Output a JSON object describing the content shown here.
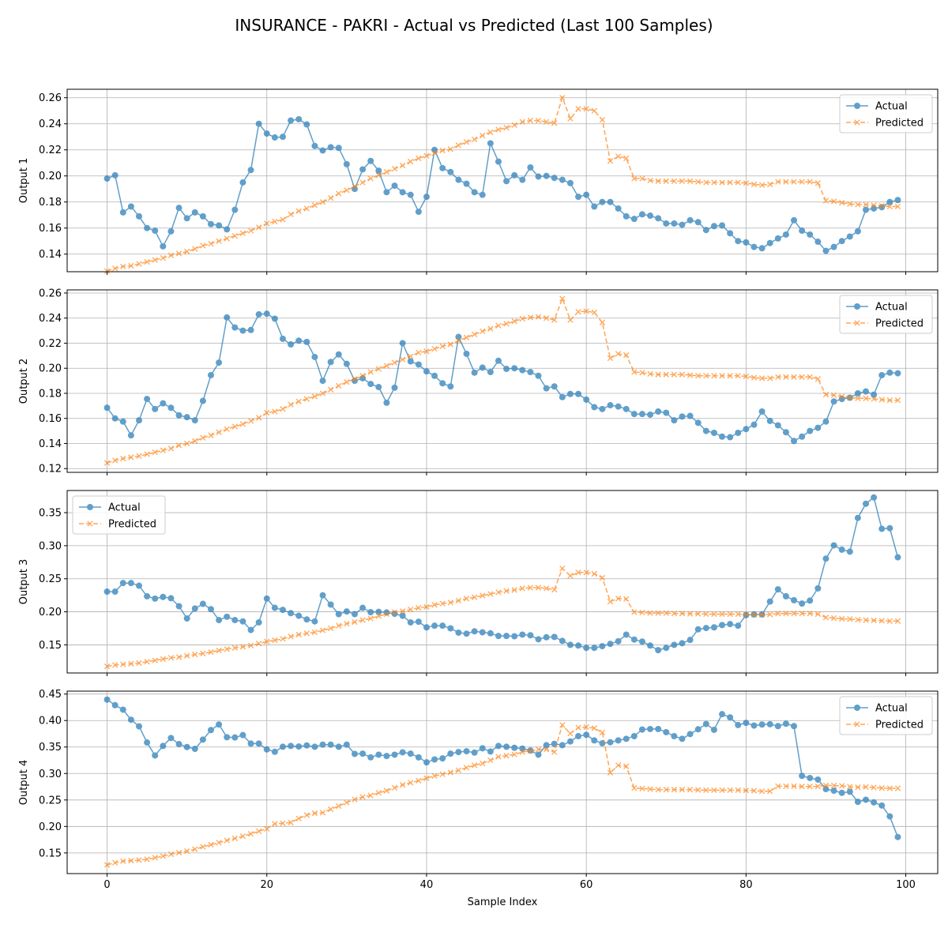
{
  "figure": {
    "title": "INSURANCE - PAKRI - Actual vs Predicted (Last 100 Samples)",
    "xlabel": "Sample Index"
  },
  "colors": {
    "actual": "#1f77b4",
    "predicted": "#ff7f0e",
    "grid": "#b0b0b0"
  },
  "chart_data": [
    {
      "type": "line",
      "ylabel": "Output 1",
      "xlim": [
        -5,
        104
      ],
      "ylim": [
        0.1265,
        0.2665
      ],
      "xticks": [
        0,
        20,
        40,
        60,
        80,
        100
      ],
      "yticks": [
        0.14,
        0.16,
        0.18,
        0.2,
        0.22,
        0.24,
        0.26
      ],
      "ytick_labels": [
        "0.14",
        "0.16",
        "0.18",
        "0.20",
        "0.22",
        "0.24",
        "0.26"
      ],
      "grid": true,
      "legend": "upper right",
      "series": [
        {
          "name": "Actual",
          "marker": "o",
          "values": [
            0.198,
            0.2005,
            0.172,
            0.1765,
            0.169,
            0.16,
            0.158,
            0.146,
            0.1575,
            0.1755,
            0.1675,
            0.172,
            0.169,
            0.163,
            0.162,
            0.159,
            0.174,
            0.195,
            0.2045,
            0.24,
            0.2325,
            0.2295,
            0.23,
            0.2425,
            0.2435,
            0.2395,
            0.223,
            0.2195,
            0.222,
            0.2215,
            0.209,
            0.19,
            0.205,
            0.2115,
            0.204,
            0.1875,
            0.1925,
            0.1875,
            0.1855,
            0.1725,
            0.184,
            0.22,
            0.206,
            0.203,
            0.197,
            0.194,
            0.1875,
            0.1855,
            0.225,
            0.211,
            0.196,
            0.2005,
            0.197,
            0.2065,
            0.1995,
            0.2,
            0.1985,
            0.197,
            0.1945,
            0.184,
            0.1855,
            0.1765,
            0.18,
            0.18,
            0.175,
            0.169,
            0.167,
            0.1705,
            0.1695,
            0.1675,
            0.1635,
            0.1635,
            0.1625,
            0.166,
            0.1645,
            0.1585,
            0.1615,
            0.162,
            0.156,
            0.15,
            0.149,
            0.1455,
            0.1445,
            0.1485,
            0.152,
            0.155,
            0.166,
            0.158,
            0.155,
            0.1495,
            0.1425,
            0.1455,
            0.15,
            0.1535,
            0.1575,
            0.174,
            0.175,
            0.176,
            0.18,
            0.1815
          ]
        },
        {
          "name": "Predicted",
          "marker": "x",
          "values": [
            0.127,
            0.129,
            0.1305,
            0.131,
            0.1325,
            0.134,
            0.1355,
            0.137,
            0.139,
            0.1405,
            0.142,
            0.144,
            0.1465,
            0.148,
            0.15,
            0.152,
            0.154,
            0.156,
            0.158,
            0.1605,
            0.1635,
            0.165,
            0.1665,
            0.1705,
            0.173,
            0.175,
            0.1775,
            0.18,
            0.183,
            0.1865,
            0.189,
            0.192,
            0.195,
            0.198,
            0.2005,
            0.203,
            0.2055,
            0.208,
            0.211,
            0.2135,
            0.2155,
            0.2175,
            0.2195,
            0.2205,
            0.2235,
            0.226,
            0.228,
            0.231,
            0.2335,
            0.2355,
            0.237,
            0.239,
            0.2415,
            0.2425,
            0.2425,
            0.2415,
            0.2405,
            0.26,
            0.244,
            0.2515,
            0.2515,
            0.25,
            0.243,
            0.2115,
            0.215,
            0.2135,
            0.198,
            0.198,
            0.1965,
            0.196,
            0.196,
            0.196,
            0.196,
            0.196,
            0.1955,
            0.195,
            0.195,
            0.195,
            0.195,
            0.195,
            0.1945,
            0.1935,
            0.193,
            0.1935,
            0.1955,
            0.1955,
            0.1955,
            0.1955,
            0.1955,
            0.1945,
            0.181,
            0.1805,
            0.1795,
            0.1785,
            0.178,
            0.178,
            0.1775,
            0.177,
            0.1765,
            0.1765
          ]
        }
      ]
    },
    {
      "type": "line",
      "ylabel": "Output 2",
      "xlim": [
        -5,
        104
      ],
      "ylim": [
        0.117,
        0.2625
      ],
      "xticks": [
        0,
        20,
        40,
        60,
        80,
        100
      ],
      "yticks": [
        0.12,
        0.14,
        0.16,
        0.18,
        0.2,
        0.22,
        0.24,
        0.26
      ],
      "ytick_labels": [
        "0.12",
        "0.14",
        "0.16",
        "0.18",
        "0.20",
        "0.22",
        "0.24",
        "0.26"
      ],
      "grid": true,
      "legend": "upper right",
      "series": [
        {
          "name": "Actual",
          "marker": "o",
          "values": [
            0.1685,
            0.16,
            0.1575,
            0.1465,
            0.1585,
            0.1755,
            0.1675,
            0.172,
            0.1685,
            0.1625,
            0.161,
            0.1585,
            0.174,
            0.1945,
            0.2045,
            0.2405,
            0.2325,
            0.23,
            0.2305,
            0.243,
            0.2435,
            0.2395,
            0.2235,
            0.219,
            0.222,
            0.221,
            0.209,
            0.19,
            0.205,
            0.211,
            0.2035,
            0.19,
            0.192,
            0.1875,
            0.185,
            0.1725,
            0.1845,
            0.22,
            0.2055,
            0.203,
            0.1975,
            0.194,
            0.188,
            0.1855,
            0.225,
            0.2115,
            0.1965,
            0.2005,
            0.197,
            0.206,
            0.1995,
            0.2,
            0.1985,
            0.197,
            0.194,
            0.184,
            0.1855,
            0.177,
            0.1795,
            0.1795,
            0.175,
            0.169,
            0.1675,
            0.1705,
            0.1695,
            0.1675,
            0.1635,
            0.1635,
            0.163,
            0.1655,
            0.1645,
            0.1585,
            0.1615,
            0.162,
            0.1565,
            0.15,
            0.1485,
            0.1455,
            0.145,
            0.1485,
            0.1515,
            0.155,
            0.1655,
            0.158,
            0.1545,
            0.149,
            0.142,
            0.1455,
            0.15,
            0.1525,
            0.1575,
            0.1735,
            0.1755,
            0.1765,
            0.18,
            0.1815,
            0.179,
            0.1945,
            0.1965,
            0.196
          ]
        },
        {
          "name": "Predicted",
          "marker": "x",
          "values": [
            0.1245,
            0.1265,
            0.128,
            0.129,
            0.13,
            0.1315,
            0.133,
            0.1345,
            0.136,
            0.1385,
            0.14,
            0.142,
            0.1445,
            0.1465,
            0.149,
            0.1515,
            0.1535,
            0.1555,
            0.158,
            0.1605,
            0.1645,
            0.1655,
            0.1675,
            0.171,
            0.1735,
            0.1755,
            0.1775,
            0.18,
            0.183,
            0.186,
            0.189,
            0.1915,
            0.194,
            0.197,
            0.1995,
            0.202,
            0.2045,
            0.207,
            0.2095,
            0.2125,
            0.2135,
            0.2155,
            0.2175,
            0.219,
            0.222,
            0.2245,
            0.227,
            0.2295,
            0.2315,
            0.234,
            0.2355,
            0.2375,
            0.2395,
            0.2405,
            0.241,
            0.24,
            0.2385,
            0.2555,
            0.2385,
            0.245,
            0.2455,
            0.2445,
            0.2365,
            0.208,
            0.2115,
            0.2105,
            0.197,
            0.1965,
            0.1955,
            0.195,
            0.195,
            0.195,
            0.195,
            0.1945,
            0.194,
            0.194,
            0.194,
            0.194,
            0.194,
            0.194,
            0.1935,
            0.1925,
            0.192,
            0.192,
            0.193,
            0.193,
            0.193,
            0.193,
            0.193,
            0.1915,
            0.179,
            0.1785,
            0.1775,
            0.1765,
            0.176,
            0.176,
            0.1755,
            0.175,
            0.1745,
            0.1745
          ]
        }
      ]
    },
    {
      "type": "line",
      "ylabel": "Output 3",
      "xlim": [
        -5,
        104
      ],
      "ylim": [
        0.1075,
        0.3835
      ],
      "xticks": [
        0,
        20,
        40,
        60,
        80,
        100
      ],
      "yticks": [
        0.15,
        0.2,
        0.25,
        0.3,
        0.35
      ],
      "ytick_labels": [
        "0.15",
        "0.20",
        "0.25",
        "0.30",
        "0.35"
      ],
      "grid": true,
      "legend": "upper left",
      "series": [
        {
          "name": "Actual",
          "marker": "o",
          "values": [
            0.2305,
            0.2305,
            0.2435,
            0.2435,
            0.2395,
            0.2235,
            0.22,
            0.2225,
            0.2205,
            0.2085,
            0.19,
            0.205,
            0.212,
            0.204,
            0.1875,
            0.1925,
            0.1875,
            0.1855,
            0.1725,
            0.184,
            0.22,
            0.206,
            0.203,
            0.198,
            0.194,
            0.1885,
            0.1855,
            0.225,
            0.211,
            0.1965,
            0.2005,
            0.1965,
            0.206,
            0.1995,
            0.2,
            0.199,
            0.197,
            0.194,
            0.184,
            0.185,
            0.1765,
            0.179,
            0.179,
            0.175,
            0.1685,
            0.167,
            0.1705,
            0.169,
            0.1675,
            0.1635,
            0.1635,
            0.163,
            0.1655,
            0.1645,
            0.1585,
            0.1615,
            0.162,
            0.156,
            0.15,
            0.149,
            0.1455,
            0.1455,
            0.148,
            0.1515,
            0.1555,
            0.1655,
            0.158,
            0.155,
            0.149,
            0.142,
            0.1455,
            0.15,
            0.1525,
            0.1575,
            0.1735,
            0.1755,
            0.1765,
            0.18,
            0.1815,
            0.179,
            0.195,
            0.196,
            0.196,
            0.2155,
            0.234,
            0.2235,
            0.2175,
            0.2125,
            0.217,
            0.2355,
            0.2805,
            0.3005,
            0.294,
            0.291,
            0.342,
            0.3635,
            0.373,
            0.3255,
            0.3265,
            0.2825
          ]
        },
        {
          "name": "Predicted",
          "marker": "x",
          "values": [
            0.1175,
            0.1195,
            0.1205,
            0.1215,
            0.1225,
            0.1245,
            0.1265,
            0.1285,
            0.1305,
            0.1315,
            0.1335,
            0.1355,
            0.137,
            0.139,
            0.1415,
            0.1435,
            0.1455,
            0.147,
            0.149,
            0.152,
            0.155,
            0.157,
            0.159,
            0.1625,
            0.1655,
            0.1675,
            0.169,
            0.172,
            0.175,
            0.179,
            0.182,
            0.1845,
            0.1875,
            0.19,
            0.1935,
            0.1965,
            0.1995,
            0.201,
            0.2035,
            0.206,
            0.2075,
            0.2105,
            0.2125,
            0.214,
            0.217,
            0.22,
            0.222,
            0.2245,
            0.227,
            0.2295,
            0.2315,
            0.233,
            0.2355,
            0.2365,
            0.2365,
            0.2355,
            0.2335,
            0.2655,
            0.2545,
            0.2595,
            0.2595,
            0.2575,
            0.2515,
            0.2155,
            0.22,
            0.2195,
            0.1995,
            0.199,
            0.198,
            0.198,
            0.198,
            0.1975,
            0.1975,
            0.197,
            0.197,
            0.1965,
            0.1965,
            0.1965,
            0.1965,
            0.1965,
            0.196,
            0.1955,
            0.1955,
            0.196,
            0.1975,
            0.1975,
            0.1975,
            0.1975,
            0.1975,
            0.1965,
            0.1915,
            0.1905,
            0.1895,
            0.189,
            0.188,
            0.1875,
            0.187,
            0.1865,
            0.186,
            0.186
          ]
        }
      ]
    },
    {
      "type": "line",
      "ylabel": "Output 4",
      "xlim": [
        -5,
        104
      ],
      "ylim": [
        0.111,
        0.4555
      ],
      "xticks": [
        0,
        20,
        40,
        60,
        80,
        100
      ],
      "yticks": [
        0.15,
        0.2,
        0.25,
        0.3,
        0.35,
        0.4,
        0.45
      ],
      "ytick_labels": [
        "0.15",
        "0.20",
        "0.25",
        "0.30",
        "0.35",
        "0.40",
        "0.45"
      ],
      "grid": true,
      "legend": "upper right",
      "series": [
        {
          "name": "Actual",
          "marker": "o",
          "values": [
            0.4395,
            0.429,
            0.4205,
            0.4015,
            0.389,
            0.3585,
            0.334,
            0.352,
            0.367,
            0.3555,
            0.35,
            0.3465,
            0.364,
            0.382,
            0.3925,
            0.3685,
            0.368,
            0.3725,
            0.3565,
            0.3565,
            0.3455,
            0.341,
            0.3505,
            0.352,
            0.351,
            0.353,
            0.3505,
            0.3545,
            0.3545,
            0.3505,
            0.3545,
            0.337,
            0.3375,
            0.3305,
            0.3355,
            0.333,
            0.3355,
            0.34,
            0.3375,
            0.3305,
            0.321,
            0.3265,
            0.3285,
            0.3375,
            0.3405,
            0.342,
            0.3395,
            0.3475,
            0.3415,
            0.352,
            0.3505,
            0.3485,
            0.347,
            0.3435,
            0.3355,
            0.3535,
            0.356,
            0.3535,
            0.3605,
            0.3705,
            0.373,
            0.3625,
            0.357,
            0.359,
            0.3625,
            0.3655,
            0.3705,
            0.383,
            0.384,
            0.384,
            0.378,
            0.3705,
            0.3655,
            0.3745,
            0.3835,
            0.3935,
            0.3825,
            0.412,
            0.406,
            0.3915,
            0.3955,
            0.3905,
            0.3925,
            0.393,
            0.3895,
            0.394,
            0.3895,
            0.2955,
            0.2915,
            0.2885,
            0.2705,
            0.2675,
            0.2635,
            0.2655,
            0.2465,
            0.2505,
            0.2455,
            0.2395,
            0.219,
            0.18
          ]
        },
        {
          "name": "Predicted",
          "marker": "x",
          "values": [
            0.1275,
            0.1315,
            0.1345,
            0.1355,
            0.1365,
            0.138,
            0.141,
            0.144,
            0.1475,
            0.1505,
            0.1535,
            0.157,
            0.1615,
            0.1655,
            0.1695,
            0.1735,
            0.1775,
            0.1815,
            0.186,
            0.191,
            0.1955,
            0.205,
            0.206,
            0.2075,
            0.215,
            0.2215,
            0.225,
            0.226,
            0.2325,
            0.2385,
            0.245,
            0.251,
            0.2555,
            0.2585,
            0.2635,
            0.2675,
            0.273,
            0.2785,
            0.2825,
            0.2865,
            0.291,
            0.2955,
            0.2985,
            0.302,
            0.306,
            0.311,
            0.3155,
            0.319,
            0.325,
            0.3315,
            0.3335,
            0.336,
            0.3405,
            0.3425,
            0.3455,
            0.3455,
            0.3405,
            0.3915,
            0.3755,
            0.3865,
            0.3875,
            0.3855,
            0.3775,
            0.3015,
            0.3155,
            0.3135,
            0.2725,
            0.2715,
            0.2705,
            0.2695,
            0.2695,
            0.2695,
            0.2695,
            0.2695,
            0.269,
            0.2685,
            0.2685,
            0.2685,
            0.2685,
            0.2685,
            0.268,
            0.2675,
            0.2665,
            0.2665,
            0.276,
            0.276,
            0.276,
            0.2755,
            0.2755,
            0.2755,
            0.2775,
            0.2775,
            0.2765,
            0.275,
            0.274,
            0.2745,
            0.2735,
            0.2725,
            0.272,
            0.272
          ]
        }
      ]
    }
  ]
}
